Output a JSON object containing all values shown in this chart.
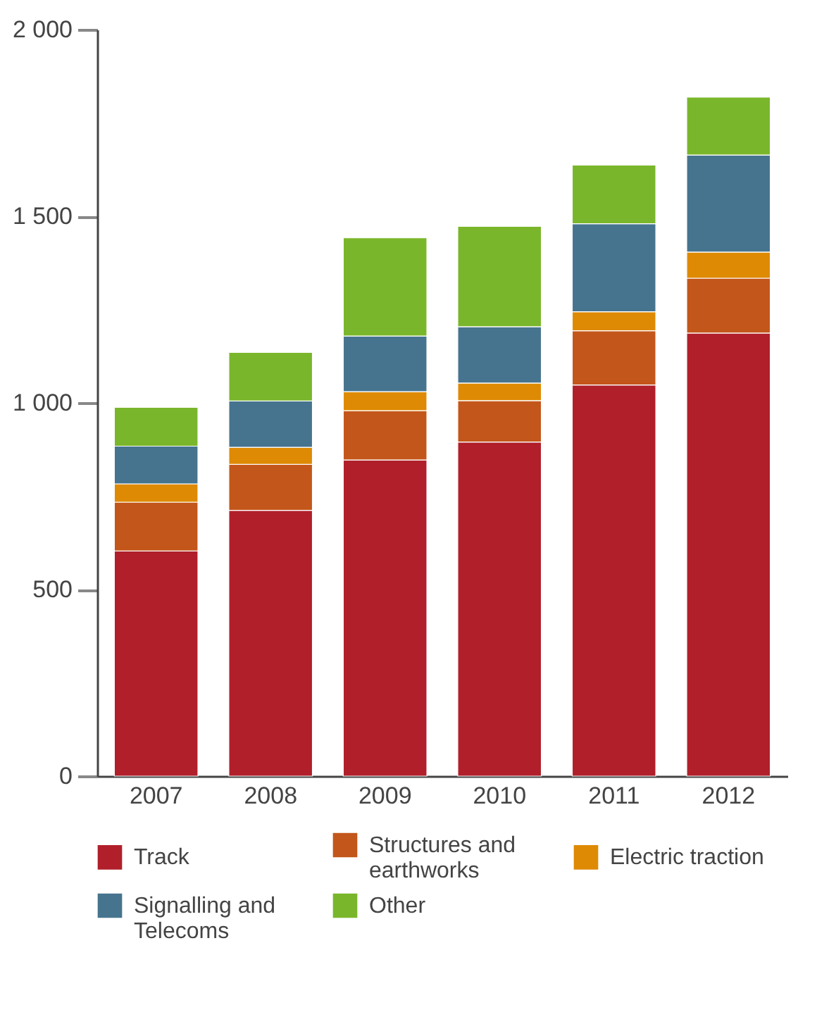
{
  "chart_data": {
    "type": "bar",
    "stacked": true,
    "categories": [
      "2007",
      "2008",
      "2009",
      "2010",
      "2011",
      "2012"
    ],
    "series": [
      {
        "name": "Track",
        "color": "#b01f2a",
        "values": [
          603,
          712,
          847,
          895,
          1048,
          1187
        ]
      },
      {
        "name": "Structures and earthworks",
        "color": "#c3561a",
        "values": [
          131,
          123,
          132,
          111,
          145,
          147
        ]
      },
      {
        "name": "Electric traction",
        "color": "#de8a04",
        "values": [
          49,
          46,
          51,
          47,
          51,
          70
        ]
      },
      {
        "name": "Signalling and Telecoms",
        "color": "#46748f",
        "values": [
          101,
          124,
          149,
          151,
          236,
          260
        ]
      },
      {
        "name": "Other",
        "color": "#7ab62b",
        "values": [
          104,
          130,
          263,
          269,
          157,
          155
        ]
      }
    ],
    "ylim": [
      0,
      2000
    ],
    "yticks": [
      0,
      500,
      {
        "value": 1000,
        "label": "1 000"
      },
      {
        "value": 1500,
        "label": "1 500"
      },
      {
        "value": 2000,
        "label": "2 000"
      }
    ],
    "grid": false,
    "legend": "bottom"
  }
}
